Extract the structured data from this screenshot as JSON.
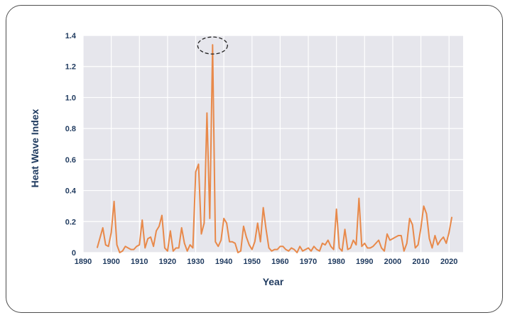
{
  "chart_data": {
    "type": "line",
    "xlabel": "Year",
    "ylabel": "Heat Wave Index",
    "xlim": [
      1890,
      2025
    ],
    "ylim": [
      0,
      1.4
    ],
    "xticks": [
      "1890",
      "1900",
      "1910",
      "1920",
      "1930",
      "1940",
      "1950",
      "1960",
      "1970",
      "1980",
      "1990",
      "2000",
      "2010",
      "2020"
    ],
    "yticks": [
      "0",
      "0.2",
      "0.4",
      "0.6",
      "0.8",
      "1.0",
      "1.2",
      "1.4"
    ],
    "grid": true,
    "legend": "none",
    "colors": {
      "line": "#e8894a",
      "grid": "#d9d9d9",
      "plot_bg": "#e6e6ec",
      "text": "#1f3a5f"
    },
    "annotation": {
      "type": "dashed-ellipse",
      "x": 1936,
      "y": 1.34
    },
    "series": [
      {
        "x": [
          1895,
          1897,
          1898,
          1899,
          1900,
          1901,
          1902,
          1903,
          1904,
          1905,
          1906,
          1907,
          1908,
          1909,
          1910,
          1911,
          1912,
          1913,
          1914,
          1915,
          1916,
          1917,
          1918,
          1919,
          1920,
          1921,
          1922,
          1923,
          1924,
          1925,
          1926,
          1927,
          1928,
          1929,
          1930,
          1931,
          1932,
          1933,
          1934,
          1935,
          1936,
          1937,
          1938,
          1939,
          1940,
          1941,
          1942,
          1943,
          1944,
          1945,
          1946,
          1947,
          1948,
          1949,
          1950,
          1951,
          1952,
          1953,
          1954,
          1955,
          1956,
          1957,
          1958,
          1959,
          1960,
          1961,
          1962,
          1963,
          1964,
          1965,
          1966,
          1967,
          1968,
          1969,
          1970,
          1971,
          1972,
          1973,
          1974,
          1975,
          1976,
          1977,
          1978,
          1979,
          1980,
          1981,
          1982,
          1983,
          1984,
          1985,
          1986,
          1987,
          1988,
          1989,
          1990,
          1991,
          1992,
          1993,
          1994,
          1995,
          1996,
          1997,
          1998,
          1999,
          2000,
          2001,
          2002,
          2003,
          2004,
          2005,
          2006,
          2007,
          2008,
          2009,
          2010,
          2011,
          2012,
          2013,
          2014,
          2015,
          2016,
          2017,
          2018,
          2019,
          2020,
          2021
        ],
        "y": [
          0.03,
          0.16,
          0.05,
          0.04,
          0.13,
          0.33,
          0.05,
          0.0,
          0.01,
          0.04,
          0.03,
          0.02,
          0.02,
          0.04,
          0.05,
          0.21,
          0.03,
          0.09,
          0.1,
          0.04,
          0.14,
          0.17,
          0.24,
          0.03,
          0.01,
          0.14,
          0.01,
          0.03,
          0.03,
          0.16,
          0.06,
          0.01,
          0.05,
          0.03,
          0.52,
          0.57,
          0.12,
          0.19,
          0.9,
          0.22,
          1.34,
          0.07,
          0.04,
          0.08,
          0.22,
          0.19,
          0.07,
          0.07,
          0.06,
          0.0,
          0.01,
          0.17,
          0.1,
          0.05,
          0.02,
          0.07,
          0.19,
          0.07,
          0.29,
          0.15,
          0.03,
          0.01,
          0.02,
          0.02,
          0.04,
          0.04,
          0.02,
          0.01,
          0.03,
          0.02,
          0.0,
          0.04,
          0.01,
          0.02,
          0.03,
          0.01,
          0.04,
          0.02,
          0.01,
          0.06,
          0.05,
          0.08,
          0.04,
          0.02,
          0.28,
          0.03,
          0.01,
          0.15,
          0.02,
          0.03,
          0.08,
          0.05,
          0.35,
          0.04,
          0.06,
          0.03,
          0.03,
          0.04,
          0.06,
          0.08,
          0.03,
          0.01,
          0.12,
          0.08,
          0.09,
          0.1,
          0.11,
          0.11,
          0.01,
          0.06,
          0.22,
          0.18,
          0.03,
          0.05,
          0.16,
          0.3,
          0.25,
          0.09,
          0.03,
          0.11,
          0.05,
          0.08,
          0.1,
          0.06,
          0.13,
          0.23
        ]
      }
    ]
  }
}
